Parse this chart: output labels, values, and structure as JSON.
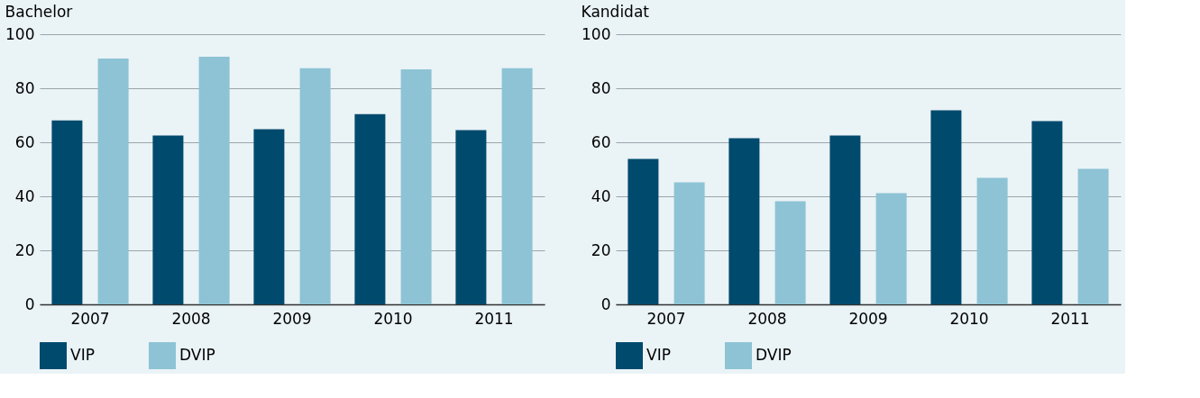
{
  "chart_data": [
    {
      "type": "bar",
      "title": "Bachelor",
      "categories": [
        "2007",
        "2008",
        "2009",
        "2010",
        "2011"
      ],
      "ylim": [
        0,
        100
      ],
      "yticks": [
        0,
        20,
        40,
        60,
        80,
        100
      ],
      "grid": "y",
      "legend": "bottom",
      "series": [
        {
          "name": "VIP",
          "color": "#004a6e",
          "values": [
            68.1,
            62.5,
            64.8,
            70.4,
            64.5
          ]
        },
        {
          "name": "DVIP",
          "color": "#8dc3d5",
          "values": [
            91.0,
            91.7,
            87.4,
            87.0,
            87.4
          ]
        }
      ]
    },
    {
      "type": "bar",
      "title": "Kandidat",
      "categories": [
        "2007",
        "2008",
        "2009",
        "2010",
        "2011"
      ],
      "ylim": [
        0,
        100
      ],
      "yticks": [
        0,
        20,
        40,
        60,
        80,
        100
      ],
      "grid": "y",
      "legend": "bottom",
      "series": [
        {
          "name": "VIP",
          "color": "#004a6e",
          "values": [
            53.8,
            61.5,
            62.5,
            71.8,
            67.8
          ]
        },
        {
          "name": "DVIP",
          "color": "#8dc3d5",
          "values": [
            45.2,
            38.2,
            41.2,
            46.8,
            50.2
          ]
        }
      ]
    }
  ]
}
